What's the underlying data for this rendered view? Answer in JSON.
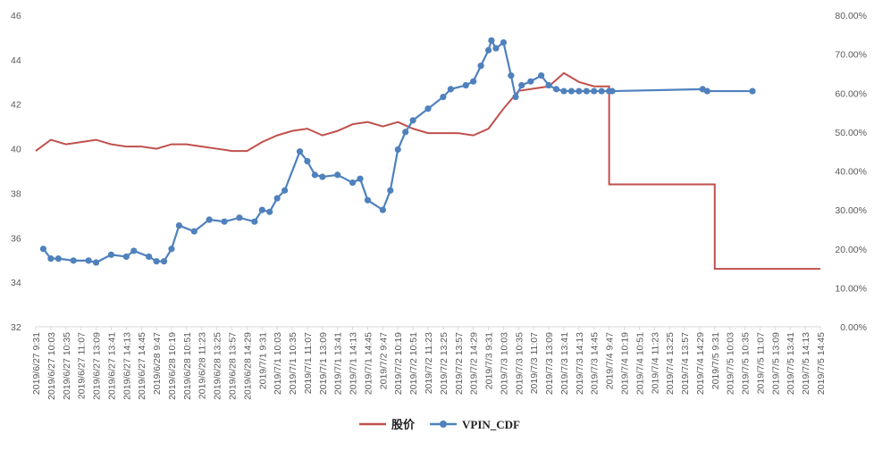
{
  "chart_data": {
    "type": "line",
    "title": "",
    "legend": {
      "placement": "bottom"
    },
    "left_axis": {
      "min": 32,
      "max": 46,
      "ticks": [
        "32",
        "34",
        "36",
        "38",
        "40",
        "42",
        "44",
        "46"
      ]
    },
    "right_axis": {
      "min": 0,
      "max": 80,
      "ticks": [
        "0.00%",
        "10.00%",
        "20.00%",
        "30.00%",
        "40.00%",
        "50.00%",
        "60.00%",
        "70.00%",
        "80.00%"
      ]
    },
    "grid": false,
    "categories": [
      "2019/6/27 9:31",
      "2019/6/27 10:03",
      "2019/6/27 10:35",
      "2019/6/27 11:07",
      "2019/6/27 13:09",
      "2019/6/27 13:41",
      "2019/6/27 14:13",
      "2019/6/27 14:45",
      "2019/6/28 9:47",
      "2019/6/28 10:19",
      "2019/6/28 10:51",
      "2019/6/28 11:23",
      "2019/6/28 13:25",
      "2019/6/28 13:57",
      "2019/6/28 14:29",
      "2019/7/1 9:31",
      "2019/7/1 10:03",
      "2019/7/1 10:35",
      "2019/7/1 11:07",
      "2019/7/1 13:09",
      "2019/7/1 13:41",
      "2019/7/1 14:13",
      "2019/7/1 14:45",
      "2019/7/2 9:47",
      "2019/7/2 10:19",
      "2019/7/2 10:51",
      "2019/7/2 11:23",
      "2019/7/2 13:25",
      "2019/7/2 13:57",
      "2019/7/2 14:29",
      "2019/7/3 9:31",
      "2019/7/3 10:03",
      "2019/7/3 10:35",
      "2019/7/3 11:07",
      "2019/7/3 13:09",
      "2019/7/3 13:41",
      "2019/7/3 14:13",
      "2019/7/3 14:45",
      "2019/7/4 9:47",
      "2019/7/4 10:19",
      "2019/7/4 10:51",
      "2019/7/4 11:23",
      "2019/7/4 13:25",
      "2019/7/4 13:57",
      "2019/7/4 14:29",
      "2019/7/5 9:31",
      "2019/7/5 10:03",
      "2019/7/5 10:35",
      "2019/7/5 11:07",
      "2019/7/5 13:09",
      "2019/7/5 13:41",
      "2019/7/5 14:13",
      "2019/7/5 14:45"
    ],
    "series": [
      {
        "name": "股价",
        "axis": "left",
        "color": "#C0504D",
        "values": [
          39.9,
          40.4,
          40.2,
          40.3,
          40.4,
          40.2,
          40.1,
          40.1,
          40.0,
          40.2,
          40.2,
          40.1,
          40.0,
          39.9,
          39.9,
          40.3,
          40.6,
          40.8,
          40.9,
          40.6,
          40.8,
          41.1,
          41.2,
          41.0,
          41.2,
          40.9,
          40.7,
          40.7,
          40.7,
          40.6,
          40.9,
          41.8,
          42.6,
          42.7,
          42.8,
          43.4,
          43.0,
          42.8,
          38.4,
          38.4,
          38.4,
          38.4,
          38.4,
          38.4,
          38.4,
          34.6,
          34.6,
          34.6,
          34.6,
          34.6,
          34.6,
          34.6,
          34.6
        ]
      },
      {
        "name": "VPIN_CDF",
        "axis": "right",
        "color": "#4F81BD",
        "x": [
          0.5,
          1.0,
          1.5,
          2.5,
          3.5,
          4.0,
          5.0,
          6.0,
          6.5,
          7.5,
          8.0,
          8.5,
          9.0,
          9.5,
          10.5,
          11.5,
          12.5,
          13.5,
          14.5,
          15.0,
          15.5,
          16.0,
          16.5,
          17.5,
          18.0,
          18.5,
          19.0,
          20.0,
          21.0,
          21.5,
          22.0,
          23.0,
          23.5,
          24.0,
          24.5,
          25.0,
          26.0,
          27.0,
          27.5,
          28.5,
          29.0,
          29.5,
          30.0,
          30.2,
          30.5,
          31.0,
          31.5,
          31.8,
          32.2,
          32.8,
          33.5,
          34.0,
          34.5,
          35.0,
          35.5,
          36.0,
          36.5,
          37.0,
          37.5,
          38.0,
          38.2,
          44.2,
          44.5,
          47.5
        ],
        "values": [
          20.0,
          17.5,
          17.5,
          17.0,
          17.0,
          16.5,
          18.5,
          18.0,
          19.5,
          18.0,
          16.8,
          16.8,
          20.0,
          26.0,
          24.5,
          27.5,
          27.0,
          28.0,
          27.0,
          30.0,
          29.5,
          33.0,
          35.0,
          45.0,
          42.5,
          39.0,
          38.5,
          39.0,
          37.0,
          38.0,
          32.5,
          30.0,
          35.0,
          45.5,
          50.0,
          53.0,
          56.0,
          59.0,
          61.0,
          62.0,
          63.0,
          67.0,
          71.0,
          73.5,
          71.5,
          73.0,
          64.5,
          59.0,
          62.0,
          63.0,
          64.5,
          62.0,
          61.0,
          60.5,
          60.5,
          60.5,
          60.5,
          60.5,
          60.5,
          60.5,
          60.5,
          61.0,
          60.5,
          60.5
        ]
      }
    ]
  }
}
